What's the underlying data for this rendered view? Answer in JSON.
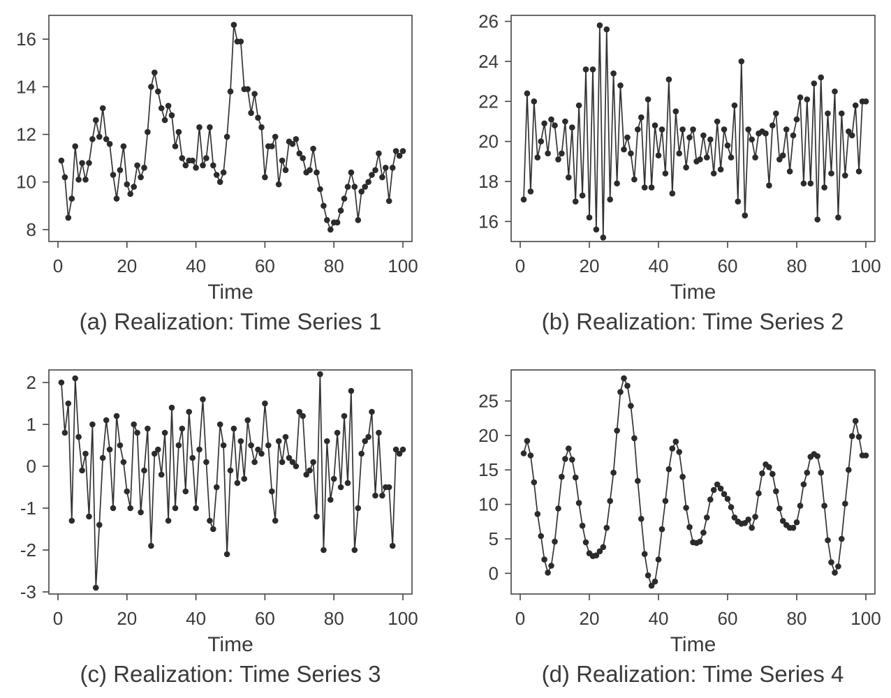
{
  "chart_data": [
    {
      "type": "line",
      "caption": "(a) Realization: Time Series 1",
      "xlabel": "Time",
      "ylabel": "",
      "xlim": [
        0,
        100
      ],
      "ylim": [
        7.5,
        17.0
      ],
      "xticks": [
        0,
        20,
        40,
        60,
        80,
        100
      ],
      "yticks": [
        8,
        10,
        12,
        14,
        16
      ],
      "markers": true,
      "x": [
        1,
        2,
        3,
        4,
        5,
        6,
        7,
        8,
        9,
        10,
        11,
        12,
        13,
        14,
        15,
        16,
        17,
        18,
        19,
        20,
        21,
        22,
        23,
        24,
        25,
        26,
        27,
        28,
        29,
        30,
        31,
        32,
        33,
        34,
        35,
        36,
        37,
        38,
        39,
        40,
        41,
        42,
        43,
        44,
        45,
        46,
        47,
        48,
        49,
        50,
        51,
        52,
        53,
        54,
        55,
        56,
        57,
        58,
        59,
        60,
        61,
        62,
        63,
        64,
        65,
        66,
        67,
        68,
        69,
        70,
        71,
        72,
        73,
        74,
        75,
        76,
        77,
        78,
        79,
        80,
        81,
        82,
        83,
        84,
        85,
        86,
        87,
        88,
        89,
        90,
        91,
        92,
        93,
        94,
        95,
        96,
        97,
        98,
        99,
        100
      ],
      "y": [
        10.9,
        10.2,
        8.5,
        9.3,
        11.5,
        10.1,
        10.8,
        10.1,
        10.8,
        11.8,
        12.6,
        11.9,
        13.1,
        11.8,
        11.6,
        10.3,
        9.3,
        10.5,
        11.5,
        9.9,
        9.5,
        9.8,
        10.7,
        10.2,
        10.6,
        12.1,
        14.0,
        14.6,
        13.8,
        13.1,
        12.6,
        13.2,
        12.8,
        11.5,
        12.1,
        11.0,
        10.7,
        10.9,
        10.9,
        10.6,
        12.3,
        10.7,
        11.0,
        12.3,
        10.7,
        10.3,
        10.0,
        10.4,
        11.9,
        13.8,
        16.6,
        15.9,
        15.9,
        13.9,
        13.9,
        12.9,
        13.7,
        12.7,
        12.3,
        10.2,
        11.5,
        11.5,
        11.9,
        9.9,
        10.9,
        10.5,
        11.7,
        11.6,
        11.8,
        11.2,
        11.0,
        10.4,
        10.5,
        11.4,
        10.4,
        9.7,
        9.0,
        8.4,
        8.0,
        8.3,
        8.3,
        8.8,
        9.3,
        9.8,
        10.4,
        9.8,
        8.4,
        9.6,
        9.8,
        10.0,
        10.3,
        10.5,
        11.2,
        10.2,
        10.6,
        9.2,
        10.6,
        11.3,
        11.1,
        11.3
      ]
    },
    {
      "type": "line",
      "caption": "(b) Realization: Time Series 2",
      "xlabel": "Time",
      "ylabel": "",
      "xlim": [
        0,
        100
      ],
      "ylim": [
        15.0,
        26.3
      ],
      "xticks": [
        0,
        20,
        40,
        60,
        80,
        100
      ],
      "yticks": [
        16,
        18,
        20,
        22,
        24,
        26
      ],
      "markers": true,
      "x": [
        1,
        2,
        3,
        4,
        5,
        6,
        7,
        8,
        9,
        10,
        11,
        12,
        13,
        14,
        15,
        16,
        17,
        18,
        19,
        20,
        21,
        22,
        23,
        24,
        25,
        26,
        27,
        28,
        29,
        30,
        31,
        32,
        33,
        34,
        35,
        36,
        37,
        38,
        39,
        40,
        41,
        42,
        43,
        44,
        45,
        46,
        47,
        48,
        49,
        50,
        51,
        52,
        53,
        54,
        55,
        56,
        57,
        58,
        59,
        60,
        61,
        62,
        63,
        64,
        65,
        66,
        67,
        68,
        69,
        70,
        71,
        72,
        73,
        74,
        75,
        76,
        77,
        78,
        79,
        80,
        81,
        82,
        83,
        84,
        85,
        86,
        87,
        88,
        89,
        90,
        91,
        92,
        93,
        94,
        95,
        96,
        97,
        98,
        99,
        100
      ],
      "y": [
        17.1,
        22.4,
        17.5,
        22.0,
        19.2,
        20.0,
        20.9,
        19.4,
        21.1,
        20.8,
        19.1,
        19.4,
        21.0,
        18.2,
        20.7,
        17.0,
        21.8,
        17.3,
        23.6,
        16.2,
        23.6,
        15.6,
        25.8,
        15.2,
        25.6,
        17.1,
        23.4,
        17.9,
        22.8,
        19.6,
        20.2,
        19.4,
        18.1,
        20.6,
        21.2,
        17.7,
        22.1,
        17.7,
        20.8,
        19.3,
        20.6,
        18.4,
        23.1,
        17.4,
        21.5,
        19.4,
        20.6,
        18.7,
        20.2,
        20.6,
        19.0,
        19.1,
        20.3,
        19.2,
        20.1,
        18.4,
        21.0,
        18.6,
        20.6,
        19.8,
        19.2,
        21.8,
        17.0,
        24.0,
        16.3,
        20.6,
        20.1,
        19.2,
        20.4,
        20.5,
        20.4,
        17.8,
        20.8,
        21.4,
        19.1,
        19.3,
        20.6,
        18.5,
        20.3,
        21.1,
        22.2,
        17.9,
        22.1,
        17.9,
        22.9,
        16.1,
        23.2,
        17.7,
        21.4,
        18.4,
        22.5,
        16.2,
        21.4,
        18.3,
        20.5,
        20.3,
        21.8,
        18.5,
        22.0,
        22.0
      ]
    },
    {
      "type": "line",
      "caption": "(c) Realization: Time Series 3",
      "xlabel": "Time",
      "ylabel": "",
      "xlim": [
        0,
        100
      ],
      "ylim": [
        -3.05,
        2.3
      ],
      "xticks": [
        0,
        20,
        40,
        60,
        80,
        100
      ],
      "yticks": [
        -3,
        -2,
        -1,
        0,
        1,
        2
      ],
      "markers": true,
      "x": [
        1,
        2,
        3,
        4,
        5,
        6,
        7,
        8,
        9,
        10,
        11,
        12,
        13,
        14,
        15,
        16,
        17,
        18,
        19,
        20,
        21,
        22,
        23,
        24,
        25,
        26,
        27,
        28,
        29,
        30,
        31,
        32,
        33,
        34,
        35,
        36,
        37,
        38,
        39,
        40,
        41,
        42,
        43,
        44,
        45,
        46,
        47,
        48,
        49,
        50,
        51,
        52,
        53,
        54,
        55,
        56,
        57,
        58,
        59,
        60,
        61,
        62,
        63,
        64,
        65,
        66,
        67,
        68,
        69,
        70,
        71,
        72,
        73,
        74,
        75,
        76,
        77,
        78,
        79,
        80,
        81,
        82,
        83,
        84,
        85,
        86,
        87,
        88,
        89,
        90,
        91,
        92,
        93,
        94,
        95,
        96,
        97,
        98,
        99,
        100
      ],
      "y": [
        2.0,
        0.8,
        1.5,
        -1.3,
        2.1,
        0.7,
        -0.1,
        0.3,
        -1.2,
        1.0,
        -2.9,
        -1.4,
        0.2,
        1.1,
        0.4,
        -1.0,
        1.2,
        0.5,
        0.1,
        -0.6,
        -1.0,
        1.0,
        0.8,
        -1.1,
        -0.1,
        0.9,
        -1.9,
        0.3,
        0.4,
        -0.2,
        0.8,
        -1.3,
        1.4,
        -1.0,
        0.5,
        0.9,
        -0.6,
        1.3,
        0.2,
        -1.0,
        0.4,
        1.6,
        0.1,
        -1.3,
        -1.5,
        -0.5,
        1.0,
        0.5,
        -2.1,
        -0.1,
        0.9,
        -0.4,
        0.6,
        -0.3,
        1.1,
        0.5,
        0.1,
        0.4,
        0.3,
        1.5,
        0.5,
        -0.6,
        -1.3,
        0.6,
        0.1,
        0.7,
        0.2,
        0.1,
        0.0,
        1.3,
        1.2,
        -0.2,
        -0.1,
        0.1,
        -1.2,
        2.2,
        -2.0,
        0.6,
        -0.8,
        -0.3,
        0.8,
        -0.5,
        1.2,
        -0.4,
        1.8,
        -2.0,
        -1.0,
        0.3,
        0.6,
        0.7,
        1.3,
        -0.7,
        0.8,
        -0.7,
        -0.5,
        -0.5,
        -1.9,
        0.4,
        0.3,
        0.4
      ]
    },
    {
      "type": "line",
      "caption": "(d) Realization: Time Series 4",
      "xlabel": "Time",
      "ylabel": "",
      "xlim": [
        0,
        100
      ],
      "ylim": [
        -3.0,
        29.5
      ],
      "xticks": [
        0,
        20,
        40,
        60,
        80,
        100
      ],
      "yticks": [
        0,
        5,
        10,
        15,
        20,
        25
      ],
      "markers": true,
      "x": [
        1,
        2,
        3,
        4,
        5,
        6,
        7,
        8,
        9,
        10,
        11,
        12,
        13,
        14,
        15,
        16,
        17,
        18,
        19,
        20,
        21,
        22,
        23,
        24,
        25,
        26,
        27,
        28,
        29,
        30,
        31,
        32,
        33,
        34,
        35,
        36,
        37,
        38,
        39,
        40,
        41,
        42,
        43,
        44,
        45,
        46,
        47,
        48,
        49,
        50,
        51,
        52,
        53,
        54,
        55,
        56,
        57,
        58,
        59,
        60,
        61,
        62,
        63,
        64,
        65,
        66,
        67,
        68,
        69,
        70,
        71,
        72,
        73,
        74,
        75,
        76,
        77,
        78,
        79,
        80,
        81,
        82,
        83,
        84,
        85,
        86,
        87,
        88,
        89,
        90,
        91,
        92,
        93,
        94,
        95,
        96,
        97,
        98,
        99,
        100
      ],
      "y": [
        17.4,
        19.2,
        17.1,
        13.2,
        8.6,
        5.4,
        2.0,
        0.1,
        1.1,
        4.6,
        9.4,
        14.0,
        16.6,
        18.1,
        16.5,
        13.9,
        10.2,
        6.9,
        4.5,
        2.9,
        2.5,
        2.6,
        3.2,
        3.8,
        6.6,
        10.5,
        14.6,
        20.7,
        26.3,
        28.3,
        27.2,
        24.3,
        19.6,
        13.4,
        7.9,
        2.8,
        -0.3,
        -1.8,
        -1.2,
        2.0,
        6.4,
        10.5,
        15.1,
        18.1,
        19.1,
        17.6,
        14.0,
        9.5,
        6.7,
        4.5,
        4.4,
        4.6,
        5.9,
        8.1,
        10.7,
        12.1,
        12.9,
        12.3,
        11.5,
        10.8,
        9.6,
        8.1,
        7.5,
        7.2,
        7.3,
        7.8,
        6.6,
        8.2,
        11.6,
        14.5,
        15.8,
        15.4,
        14.4,
        11.9,
        9.4,
        7.6,
        7.0,
        6.6,
        6.6,
        7.4,
        9.8,
        12.9,
        14.6,
        16.9,
        17.3,
        17.0,
        14.6,
        9.8,
        4.8,
        1.6,
        0.1,
        1.0,
        5.0,
        10.1,
        15.0,
        19.9,
        22.1,
        19.8,
        17.1,
        17.1
      ]
    }
  ]
}
